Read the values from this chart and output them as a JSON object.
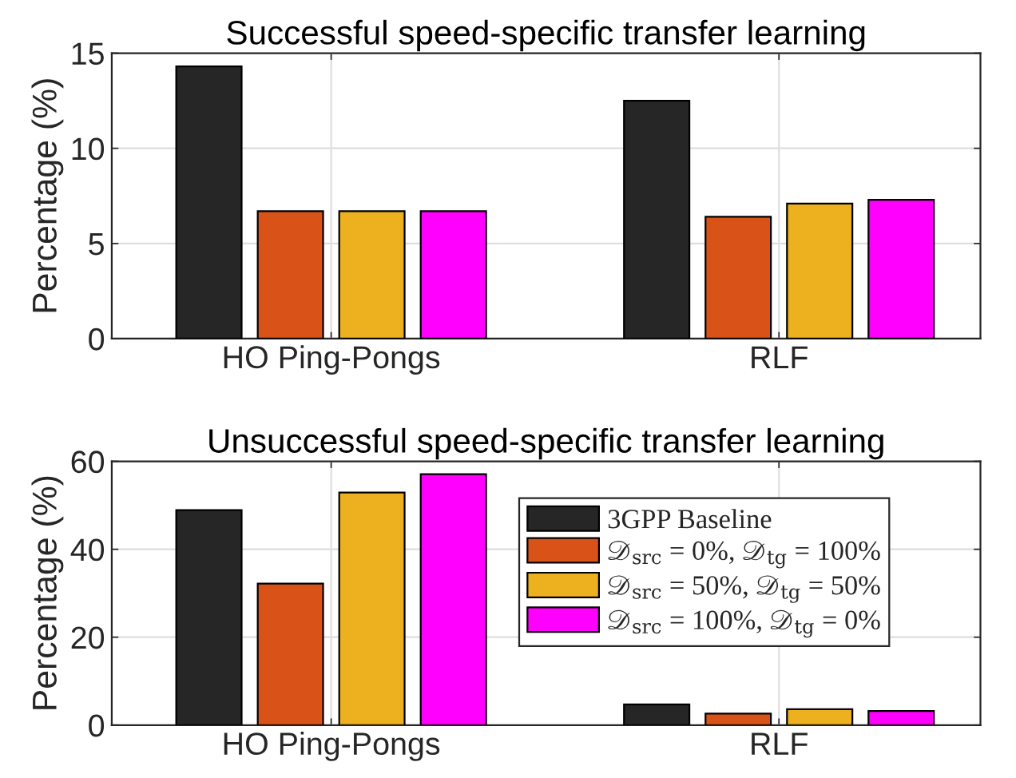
{
  "chart_data": [
    {
      "type": "bar",
      "title": "Successful speed-specific transfer learning",
      "ylabel": "Percentage (%)",
      "categories": [
        "HO Ping-Pongs",
        "RLF"
      ],
      "ylim": [
        0,
        15
      ],
      "yticks": [
        0,
        5,
        10,
        15
      ],
      "grid": true,
      "series": [
        {
          "color": "#262626",
          "values": [
            14.3,
            12.5
          ]
        },
        {
          "color": "#d95319",
          "values": [
            6.7,
            6.4
          ]
        },
        {
          "color": "#edb120",
          "values": [
            6.7,
            7.1
          ]
        },
        {
          "color": "#ff00ff",
          "values": [
            6.7,
            7.3
          ]
        }
      ]
    },
    {
      "type": "bar",
      "title": "Unsuccessful speed-specific transfer learning",
      "ylabel": "Percentage (%)",
      "categories": [
        "HO Ping-Pongs",
        "RLF"
      ],
      "ylim": [
        0,
        60
      ],
      "yticks": [
        0,
        20,
        40,
        60
      ],
      "grid": true,
      "legend": "right",
      "series": [
        {
          "name": "3GPP Baseline",
          "color": "#262626",
          "values": [
            48.9,
            4.7
          ]
        },
        {
          "name": "𝒟$_{src}$ = 0%, 𝒟$_{tg}$ = 100%",
          "color": "#d95319",
          "values": [
            32.2,
            2.6
          ]
        },
        {
          "name": "𝒟$_{src}$ = 50%, 𝒟$_{tg}$ = 50%",
          "color": "#edb120",
          "values": [
            52.9,
            3.6
          ]
        },
        {
          "name": "𝒟$_{src}$ = 100%, 𝒟$_{tg}$ = 0%",
          "color": "#ff00ff",
          "values": [
            57.1,
            3.2
          ]
        }
      ]
    }
  ]
}
